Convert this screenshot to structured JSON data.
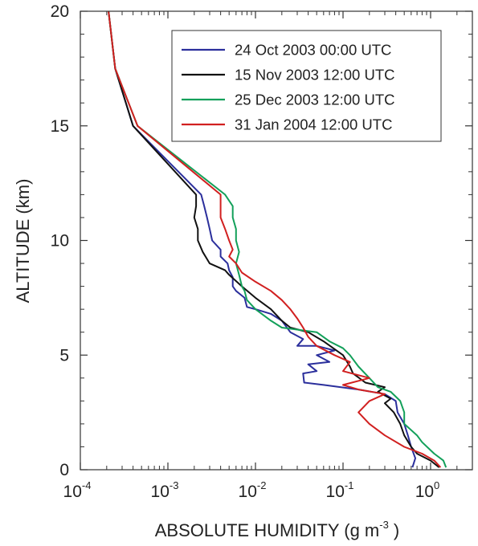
{
  "chart_data": {
    "type": "line",
    "x_scale": "log",
    "xlim": [
      0.0001,
      3
    ],
    "ylim": [
      0,
      20
    ],
    "xlabel": {
      "main": "ABSOLUTE HUMIDITY  (g m",
      "exp": "-3",
      "close": " )"
    },
    "ylabel": "ALTITUDE (km)",
    "x_ticks": [
      {
        "value": 0.0001,
        "base": "10",
        "exp": "-4"
      },
      {
        "value": 0.001,
        "base": "10",
        "exp": "-3"
      },
      {
        "value": 0.01,
        "base": "10",
        "exp": "-2"
      },
      {
        "value": 0.1,
        "base": "10",
        "exp": "-1"
      },
      {
        "value": 1,
        "base": "10",
        "exp": "0"
      }
    ],
    "y_ticks": [
      0,
      5,
      10,
      15,
      20
    ],
    "legend_position": "top-right",
    "grid": false,
    "series": [
      {
        "name": "24 Oct  2003 00:00 UTC",
        "color": "#2b2f9c",
        "points": [
          [
            0.62,
            0.1
          ],
          [
            0.67,
            0.5
          ],
          [
            0.6,
            1.0
          ],
          [
            0.55,
            1.5
          ],
          [
            0.5,
            2.0
          ],
          [
            0.42,
            2.5
          ],
          [
            0.4,
            3.0
          ],
          [
            0.3,
            3.3
          ],
          [
            0.15,
            3.5
          ],
          [
            0.06,
            3.7
          ],
          [
            0.036,
            3.8
          ],
          [
            0.035,
            4.2
          ],
          [
            0.05,
            4.3
          ],
          [
            0.04,
            4.6
          ],
          [
            0.07,
            4.7
          ],
          [
            0.05,
            5.0
          ],
          [
            0.08,
            5.2
          ],
          [
            0.05,
            5.4
          ],
          [
            0.03,
            5.4
          ],
          [
            0.035,
            5.7
          ],
          [
            0.025,
            6.0
          ],
          [
            0.02,
            6.5
          ],
          [
            0.015,
            6.8
          ],
          [
            0.01,
            7.0
          ],
          [
            0.008,
            7.1
          ],
          [
            0.0075,
            7.5
          ],
          [
            0.006,
            7.8
          ],
          [
            0.0055,
            8.0
          ],
          [
            0.0055,
            8.4
          ],
          [
            0.005,
            8.7
          ],
          [
            0.0048,
            9.0
          ],
          [
            0.004,
            9.3
          ],
          [
            0.004,
            9.6
          ],
          [
            0.0032,
            10.0
          ],
          [
            0.003,
            10.5
          ],
          [
            0.0028,
            11.0
          ],
          [
            0.0026,
            11.5
          ],
          [
            0.0024,
            12.0
          ],
          [
            0.0004,
            15.0
          ],
          [
            0.00025,
            17.5
          ],
          [
            0.00021,
            20.0
          ]
        ]
      },
      {
        "name": "15 Nov 2003 12:00 UTC",
        "color": "#111111",
        "points": [
          [
            1.25,
            0.1
          ],
          [
            1.0,
            0.4
          ],
          [
            0.7,
            0.7
          ],
          [
            0.6,
            1.0
          ],
          [
            0.5,
            1.5
          ],
          [
            0.45,
            2.0
          ],
          [
            0.38,
            2.5
          ],
          [
            0.3,
            2.9
          ],
          [
            0.35,
            3.1
          ],
          [
            0.25,
            3.4
          ],
          [
            0.3,
            3.6
          ],
          [
            0.18,
            3.8
          ],
          [
            0.13,
            4.2
          ],
          [
            0.12,
            4.5
          ],
          [
            0.1,
            5.0
          ],
          [
            0.06,
            5.6
          ],
          [
            0.04,
            6.0
          ],
          [
            0.025,
            6.2
          ],
          [
            0.02,
            6.5
          ],
          [
            0.015,
            7.0
          ],
          [
            0.01,
            7.5
          ],
          [
            0.007,
            8.0
          ],
          [
            0.005,
            8.5
          ],
          [
            0.0045,
            8.7
          ],
          [
            0.003,
            9.0
          ],
          [
            0.0025,
            9.5
          ],
          [
            0.0022,
            10.0
          ],
          [
            0.0022,
            10.5
          ],
          [
            0.002,
            11.0
          ],
          [
            0.0021,
            11.5
          ],
          [
            0.0021,
            12.0
          ],
          [
            0.0004,
            15.0
          ],
          [
            0.00025,
            17.5
          ],
          [
            0.00021,
            20.0
          ]
        ]
      },
      {
        "name": "25 Dec 2003 12:00 UTC",
        "color": "#13a05a",
        "points": [
          [
            1.5,
            0.1
          ],
          [
            1.4,
            0.4
          ],
          [
            1.1,
            0.7
          ],
          [
            0.8,
            1.2
          ],
          [
            0.7,
            1.5
          ],
          [
            0.5,
            2.0
          ],
          [
            0.5,
            2.5
          ],
          [
            0.45,
            3.0
          ],
          [
            0.35,
            3.4
          ],
          [
            0.25,
            3.6
          ],
          [
            0.2,
            4.0
          ],
          [
            0.15,
            4.5
          ],
          [
            0.12,
            5.0
          ],
          [
            0.1,
            5.3
          ],
          [
            0.07,
            5.6
          ],
          [
            0.05,
            6.0
          ],
          [
            0.02,
            6.2
          ],
          [
            0.015,
            6.5
          ],
          [
            0.01,
            7.0
          ],
          [
            0.008,
            7.4
          ],
          [
            0.0075,
            7.8
          ],
          [
            0.007,
            8.0
          ],
          [
            0.0065,
            8.5
          ],
          [
            0.006,
            9.0
          ],
          [
            0.0065,
            9.5
          ],
          [
            0.006,
            10.0
          ],
          [
            0.006,
            10.5
          ],
          [
            0.0055,
            11.0
          ],
          [
            0.0055,
            11.5
          ],
          [
            0.0045,
            12.0
          ],
          [
            0.00045,
            15.0
          ],
          [
            0.00025,
            17.5
          ],
          [
            0.00021,
            20.0
          ]
        ]
      },
      {
        "name": "31 Jan 2004 12:00 UTC",
        "color": "#d12020",
        "points": [
          [
            1.3,
            0.1
          ],
          [
            1.1,
            0.4
          ],
          [
            0.8,
            0.7
          ],
          [
            0.5,
            1.0
          ],
          [
            0.3,
            1.5
          ],
          [
            0.2,
            2.0
          ],
          [
            0.15,
            2.5
          ],
          [
            0.2,
            3.0
          ],
          [
            0.3,
            3.3
          ],
          [
            0.15,
            3.5
          ],
          [
            0.1,
            3.7
          ],
          [
            0.2,
            4.0
          ],
          [
            0.1,
            4.3
          ],
          [
            0.12,
            4.7
          ],
          [
            0.08,
            5.0
          ],
          [
            0.05,
            5.4
          ],
          [
            0.04,
            5.8
          ],
          [
            0.035,
            6.2
          ],
          [
            0.03,
            6.6
          ],
          [
            0.025,
            7.0
          ],
          [
            0.02,
            7.4
          ],
          [
            0.015,
            7.8
          ],
          [
            0.01,
            8.2
          ],
          [
            0.007,
            8.6
          ],
          [
            0.006,
            9.0
          ],
          [
            0.005,
            9.3
          ],
          [
            0.0055,
            9.6
          ],
          [
            0.005,
            10.0
          ],
          [
            0.0045,
            10.5
          ],
          [
            0.004,
            11.0
          ],
          [
            0.004,
            11.5
          ],
          [
            0.004,
            12.0
          ],
          [
            0.00045,
            15.0
          ],
          [
            0.00025,
            17.5
          ],
          [
            0.00021,
            20.0
          ]
        ]
      }
    ]
  }
}
